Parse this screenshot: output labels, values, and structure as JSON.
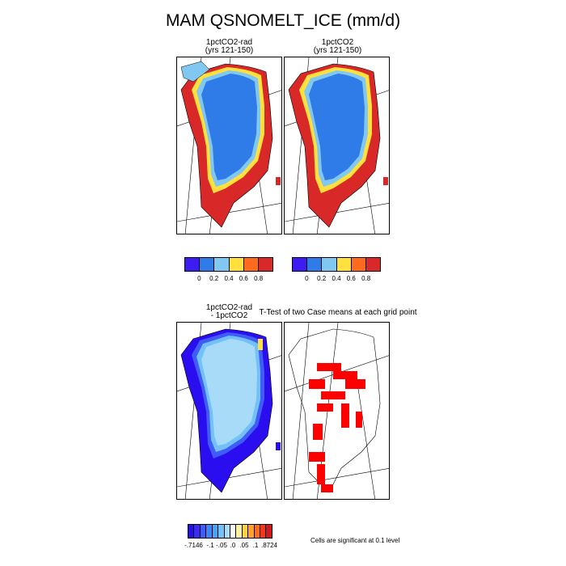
{
  "title": "MAM QSNOMELT_ICE (mm/d)",
  "panels": {
    "p1": {
      "title": "1pctCO2-rad\n(yrs 121-150)"
    },
    "p2": {
      "title": "1pctCO2\n(yrs 121-150)"
    },
    "p3": {
      "title": "1pctCO2-rad\n- 1pctCO2"
    },
    "p4": {
      "title": "T-Test of two Case means at each grid point"
    }
  },
  "colorbar_top": {
    "colors": [
      "#3d1cf2",
      "#2f7be8",
      "#80c8f2",
      "#ffe03c",
      "#ff6a1c",
      "#d92828"
    ],
    "labels": [
      "0",
      "0.2",
      "0.4",
      "0.6",
      "0.8"
    ]
  },
  "colorbar_diff": {
    "colors": [
      "#2a0ef0",
      "#3a2cf5",
      "#3f5cf8",
      "#3f84fa",
      "#4aa3fb",
      "#73c1f8",
      "#a8dbf8",
      "#ffffff",
      "#fff2a0",
      "#ffd24a",
      "#ffa12e",
      "#ff6a1c",
      "#ef3a1c",
      "#d21818"
    ],
    "labels": [
      "-.7146",
      "-.1",
      "-.05",
      ".0",
      ".05",
      ".1",
      ".8724"
    ]
  },
  "note": "Cells are significant at 0.1 level"
}
